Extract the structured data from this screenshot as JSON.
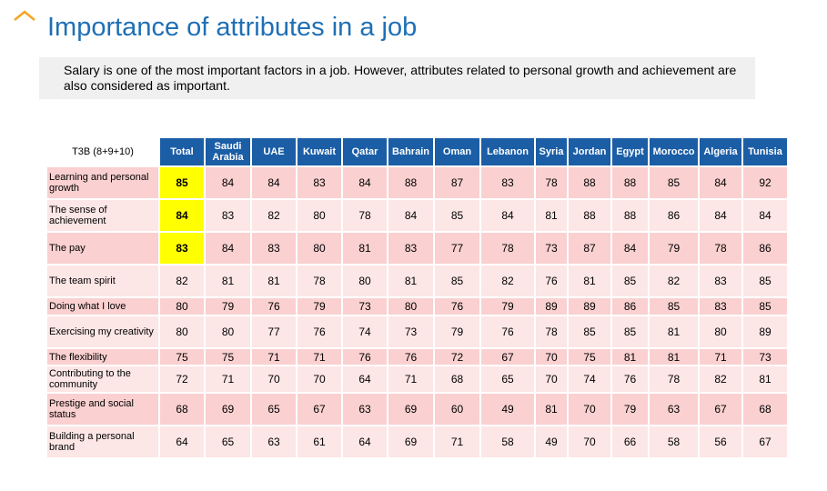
{
  "title": "Importance of attributes in a job",
  "summary": "Salary is one of the most important factors in a job. However, attributes related to personal growth and achievement are also considered as important.",
  "colors": {
    "header": "#1b5ea6",
    "title": "#1f6fb5",
    "highlight": "#ffff00",
    "row_dark": "#fad0d0",
    "row_light": "#fde6e6"
  },
  "icons": {
    "corner": "caret-up-icon"
  },
  "chart_data": {
    "type": "table",
    "corner_label": "T3B (8+9+10)",
    "columns": [
      "Total",
      "Saudi Arabia",
      "UAE",
      "Kuwait",
      "Qatar",
      "Bahrain",
      "Oman",
      "Lebanon",
      "Syria",
      "Jordan",
      "Egypt",
      "Morocco",
      "Algeria",
      "Tunisia"
    ],
    "rows": [
      {
        "label": "Learning and personal growth",
        "values": [
          85,
          84,
          84,
          83,
          84,
          88,
          87,
          83,
          78,
          88,
          88,
          85,
          84,
          92
        ],
        "highlight_total": true
      },
      {
        "label": "The sense of achievement",
        "values": [
          84,
          83,
          82,
          80,
          78,
          84,
          85,
          84,
          81,
          88,
          88,
          86,
          84,
          84
        ],
        "highlight_total": true
      },
      {
        "label": "The pay",
        "values": [
          83,
          84,
          83,
          80,
          81,
          83,
          77,
          78,
          73,
          87,
          84,
          79,
          78,
          86
        ],
        "highlight_total": true
      },
      {
        "label": "The team spirit",
        "values": [
          82,
          81,
          81,
          78,
          80,
          81,
          85,
          82,
          76,
          81,
          85,
          82,
          83,
          85
        ],
        "highlight_total": false
      },
      {
        "label": "Doing what I love",
        "values": [
          80,
          79,
          76,
          79,
          73,
          80,
          76,
          79,
          89,
          89,
          86,
          85,
          83,
          85
        ],
        "highlight_total": false
      },
      {
        "label": "Exercising my creativity",
        "values": [
          80,
          80,
          77,
          76,
          74,
          73,
          79,
          76,
          78,
          85,
          85,
          81,
          80,
          89
        ],
        "highlight_total": false
      },
      {
        "label": "The flexibility",
        "values": [
          75,
          75,
          71,
          71,
          76,
          76,
          72,
          67,
          70,
          75,
          81,
          81,
          71,
          73
        ],
        "highlight_total": false
      },
      {
        "label": "Contributing to the community",
        "values": [
          72,
          71,
          70,
          70,
          64,
          71,
          68,
          65,
          70,
          74,
          76,
          78,
          82,
          81
        ],
        "highlight_total": false
      },
      {
        "label": "Prestige and social status",
        "values": [
          68,
          69,
          65,
          67,
          63,
          69,
          60,
          49,
          81,
          70,
          79,
          63,
          67,
          68
        ],
        "highlight_total": false
      },
      {
        "label": "Building a personal brand",
        "values": [
          64,
          65,
          63,
          61,
          64,
          69,
          71,
          58,
          49,
          70,
          66,
          58,
          56,
          67
        ],
        "highlight_total": false
      }
    ]
  }
}
